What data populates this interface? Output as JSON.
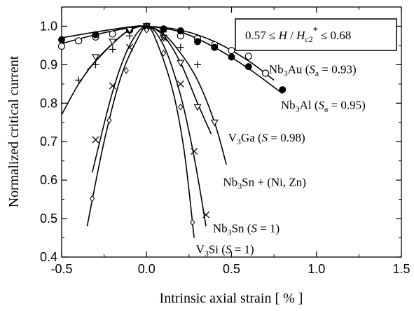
{
  "chart_data": {
    "type": "scatter",
    "title": "",
    "xlabel": "Intrinsic axial strain  [ % ]",
    "ylabel": "Normalized critical current",
    "xlim": [
      -0.5,
      1.5
    ],
    "ylim": [
      0.4,
      1.05
    ],
    "xticks": [
      -0.5,
      0.0,
      0.5,
      1.0,
      1.5
    ],
    "xtick_labels": [
      "-0.5",
      "0.0",
      "0.5",
      "1.0",
      "1.5"
    ],
    "yticks": [
      0.4,
      0.5,
      0.6,
      0.7,
      0.8,
      0.9,
      1.0
    ],
    "ytick_labels": [
      "0.4",
      "0.5",
      "0.6",
      "0.7",
      "0.8",
      "0.9",
      "1.0"
    ],
    "grid": false,
    "legend": "none",
    "field_box": {
      "prefix": "0.57 ≤ ",
      "h": "H",
      "slash": " / ",
      "hc": "H",
      "hc_sub": "c2",
      "hc_sup": "*",
      "suffix": " ≤ 0.68"
    },
    "series": [
      {
        "name": "Nb3Au (Sa = 0.93)",
        "label_parts": [
          "Nb",
          "3",
          "Au (",
          "S",
          "a",
          " = 0.93)"
        ],
        "marker": "open-circle",
        "x": [
          -0.5,
          -0.4,
          -0.3,
          -0.2,
          -0.1,
          0.0,
          0.1,
          0.2,
          0.3,
          0.4,
          0.5,
          0.6,
          0.7
        ],
        "y": [
          0.948,
          0.962,
          0.972,
          0.98,
          0.99,
          1.0,
          0.993,
          0.975,
          0.968,
          0.952,
          0.937,
          0.922,
          0.878
        ],
        "curve_x": [
          -0.5,
          -0.3,
          -0.1,
          0.0,
          0.2,
          0.4,
          0.6,
          0.75
        ],
        "curve_y": [
          0.955,
          0.978,
          0.996,
          1.0,
          0.99,
          0.96,
          0.91,
          0.86
        ]
      },
      {
        "name": "Nb3Al (Sa = 0.95)",
        "label_parts": [
          "Nb",
          "3",
          "Al (",
          "S",
          "a",
          " = 0.95)"
        ],
        "marker": "filled-circle",
        "x": [
          -0.5,
          -0.3,
          -0.1,
          0.0,
          0.1,
          0.2,
          0.3,
          0.4,
          0.5,
          0.6,
          0.8
        ],
        "y": [
          0.965,
          0.978,
          0.99,
          1.0,
          0.993,
          0.988,
          0.96,
          0.945,
          0.92,
          0.895,
          0.835
        ],
        "curve_x": [
          -0.5,
          -0.3,
          -0.1,
          0.0,
          0.2,
          0.4,
          0.6,
          0.8
        ],
        "curve_y": [
          0.97,
          0.985,
          0.998,
          1.0,
          0.985,
          0.945,
          0.89,
          0.825
        ]
      },
      {
        "name": "V3Ga (S = 0.98)",
        "label_parts": [
          "V",
          "3",
          "Ga (",
          "S",
          "",
          " = 0.98)"
        ],
        "marker": "open-triangle-down",
        "x": [
          -0.3,
          -0.2,
          -0.1,
          0.0,
          0.1,
          0.2,
          0.3,
          0.4
        ],
        "y": [
          0.92,
          0.96,
          0.99,
          1.0,
          0.97,
          0.905,
          0.79,
          0.75
        ],
        "curve_x": [
          -0.35,
          -0.2,
          -0.1,
          0.0,
          0.1,
          0.2,
          0.3,
          0.38
        ],
        "curve_y": [
          0.885,
          0.955,
          0.99,
          1.0,
          0.975,
          0.905,
          0.8,
          0.72
        ]
      },
      {
        "name": "Nb3Sn + (Ni, Zn)",
        "label_parts": [
          "Nb",
          "3",
          "Sn + (Ni, Zn)"
        ],
        "marker": "plus",
        "x": [
          -0.4,
          -0.3,
          -0.2,
          -0.1,
          0.0,
          0.1,
          0.2,
          0.3
        ],
        "y": [
          0.86,
          0.9,
          0.94,
          0.975,
          1.0,
          0.985,
          0.945,
          0.9
        ],
        "curve_x": [
          -0.5,
          -0.4,
          -0.3,
          -0.2,
          -0.1,
          0.0,
          0.1,
          0.2,
          0.3,
          0.4,
          0.47
        ],
        "curve_y": [
          0.77,
          0.85,
          0.91,
          0.955,
          0.99,
          1.0,
          0.98,
          0.93,
          0.86,
          0.75,
          0.64
        ]
      },
      {
        "name": "Nb3Sn (S = 1)",
        "label_parts": [
          "Nb",
          "3",
          "Sn (",
          "S",
          "",
          " = 1)"
        ],
        "marker": "cross",
        "x": [
          -0.3,
          -0.2,
          -0.1,
          0.0,
          0.1,
          0.2,
          0.28,
          0.35
        ],
        "y": [
          0.705,
          0.845,
          0.945,
          1.0,
          0.97,
          0.85,
          0.675,
          0.51
        ],
        "curve_x": [
          -0.32,
          -0.2,
          -0.1,
          0.0,
          0.1,
          0.2,
          0.28,
          0.35
        ],
        "curve_y": [
          0.62,
          0.83,
          0.95,
          1.0,
          0.95,
          0.82,
          0.66,
          0.48
        ]
      },
      {
        "name": "V3Si (S = 1)",
        "label_parts": [
          "V",
          "3",
          "Si (",
          "S",
          "",
          " = 1)"
        ],
        "marker": "open-diamond",
        "x": [
          -0.32,
          -0.22,
          -0.12,
          0.0,
          0.1,
          0.2,
          0.27
        ],
        "y": [
          0.552,
          0.755,
          0.885,
          0.99,
          0.93,
          0.79,
          0.49
        ],
        "curve_x": [
          -0.35,
          -0.25,
          -0.15,
          -0.05,
          0.0,
          0.05,
          0.15,
          0.22,
          0.28
        ],
        "curve_y": [
          0.48,
          0.7,
          0.87,
          0.97,
          1.0,
          0.97,
          0.84,
          0.68,
          0.45
        ]
      }
    ],
    "annotations": [
      {
        "series": 0,
        "x": 0.72,
        "y": 0.878,
        "anchor": "start"
      },
      {
        "series": 1,
        "x": 0.79,
        "y": 0.785,
        "anchor": "start"
      },
      {
        "series": 2,
        "x": 0.48,
        "y": 0.7,
        "anchor": "start"
      },
      {
        "series": 3,
        "x": 0.45,
        "y": 0.585,
        "anchor": "start"
      },
      {
        "series": 4,
        "x": 0.39,
        "y": 0.465,
        "anchor": "start"
      },
      {
        "series": 5,
        "x": 0.29,
        "y": 0.41,
        "anchor": "start"
      }
    ]
  }
}
